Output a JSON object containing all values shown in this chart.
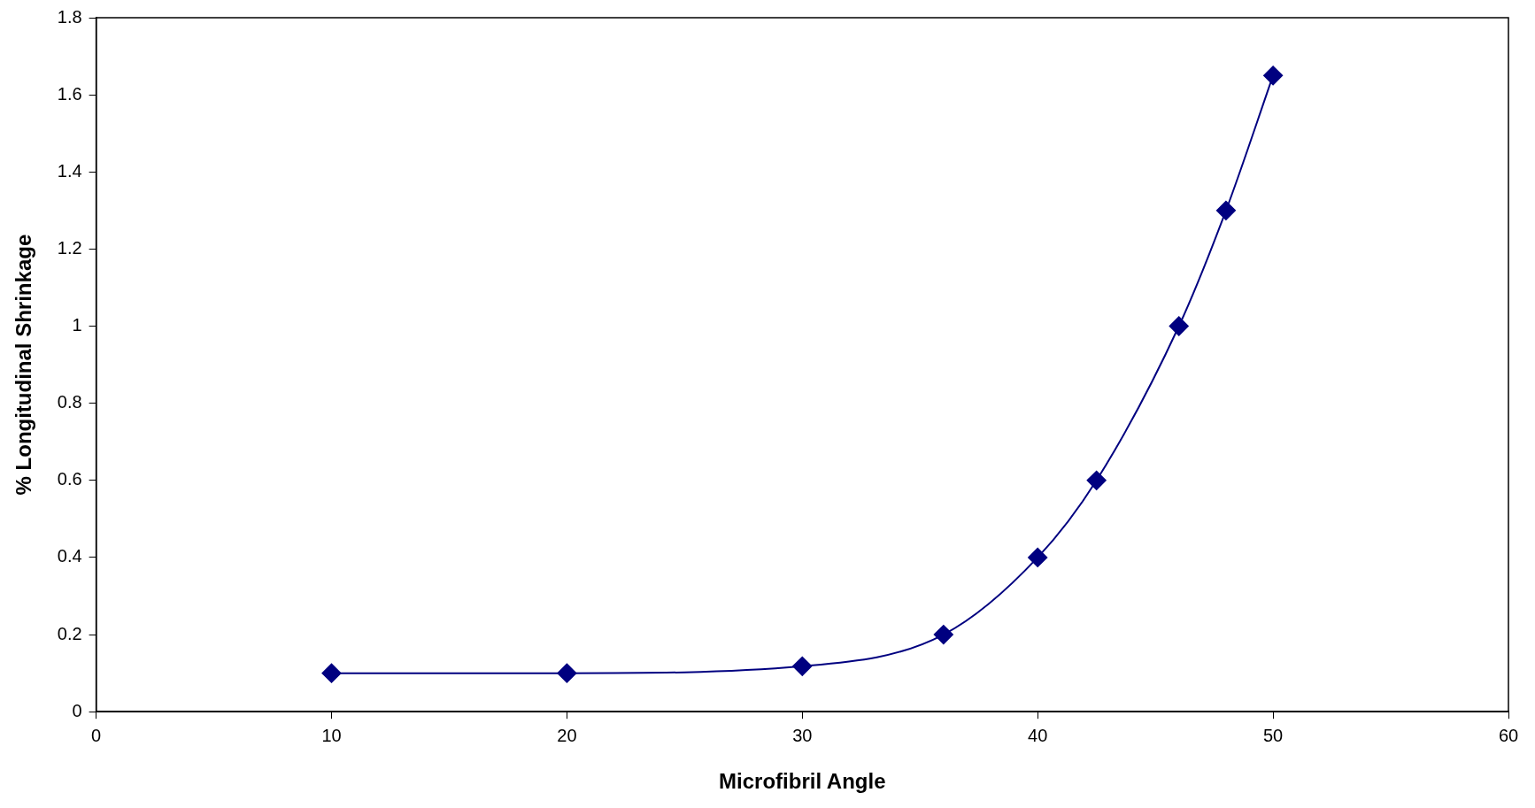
{
  "chart_data": {
    "type": "line",
    "xlabel": "Microfibril Angle",
    "ylabel": "% Longitudinal Shrinkage",
    "x": [
      10,
      20,
      30,
      36,
      40,
      42.5,
      46,
      48,
      50
    ],
    "series": [
      {
        "color": "#000080",
        "values": [
          0.1,
          0.1,
          0.118,
          0.2,
          0.4,
          0.6,
          1.0,
          1.3,
          1.65
        ]
      }
    ],
    "xlim": [
      0,
      60
    ],
    "xticks": [
      0,
      10,
      20,
      30,
      40,
      50,
      60
    ],
    "ylim": [
      0,
      1.8
    ],
    "yticks": [
      0,
      0.2,
      0.4,
      0.6,
      0.8,
      1,
      1.2,
      1.4,
      1.6,
      1.8
    ],
    "grid": false,
    "legend": false,
    "marker": "diamond",
    "line_style": "solid"
  }
}
